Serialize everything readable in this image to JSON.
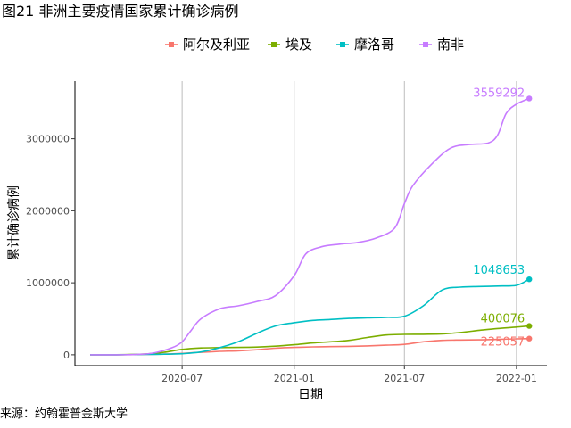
{
  "header": {
    "title": "图21 非洲主要疫情国家累计确诊病例",
    "source": "来源：约翰霍普金斯大学"
  },
  "chart_data": {
    "type": "line",
    "title": "图21 非洲主要疫情国家累计确诊病例",
    "xlabel": "日期",
    "ylabel": "累计确诊病例",
    "x_ticks": [
      "2020-07",
      "2021-01",
      "2021-07",
      "2022-01"
    ],
    "y_ticks": [
      "0",
      "1000000",
      "2000000",
      "3000000"
    ],
    "ylim": [
      -150000,
      3800000
    ],
    "xlim": [
      "2020-01-07",
      "2022-02-20"
    ],
    "grid": "vertical",
    "legend_position": "top",
    "series": [
      {
        "name": "阿尔及利亚",
        "color": "#F8766D",
        "end_label": "225057",
        "points": [
          [
            "2020-02-01",
            0
          ],
          [
            "2020-03-15",
            0
          ],
          [
            "2020-05-01",
            5000
          ],
          [
            "2020-06-01",
            10000
          ],
          [
            "2020-07-01",
            20000
          ],
          [
            "2020-08-01",
            35000
          ],
          [
            "2020-09-01",
            48000
          ],
          [
            "2020-10-01",
            55000
          ],
          [
            "2020-11-01",
            70000
          ],
          [
            "2020-12-01",
            92000
          ],
          [
            "2021-01-01",
            102000
          ],
          [
            "2021-02-01",
            110000
          ],
          [
            "2021-03-01",
            114000
          ],
          [
            "2021-04-01",
            118000
          ],
          [
            "2021-05-01",
            124000
          ],
          [
            "2021-06-01",
            133000
          ],
          [
            "2021-07-01",
            145000
          ],
          [
            "2021-08-01",
            180000
          ],
          [
            "2021-09-01",
            200000
          ],
          [
            "2021-10-01",
            205000
          ],
          [
            "2021-11-01",
            208000
          ],
          [
            "2021-12-01",
            214000
          ],
          [
            "2022-01-01",
            222000
          ],
          [
            "2022-01-22",
            225057
          ]
        ]
      },
      {
        "name": "埃及",
        "color": "#7CAE00",
        "end_label": "400076",
        "points": [
          [
            "2020-02-01",
            0
          ],
          [
            "2020-03-15",
            1000
          ],
          [
            "2020-05-01",
            10000
          ],
          [
            "2020-06-01",
            35000
          ],
          [
            "2020-07-01",
            75000
          ],
          [
            "2020-08-01",
            95000
          ],
          [
            "2020-09-01",
            100000
          ],
          [
            "2020-10-01",
            103000
          ],
          [
            "2020-11-01",
            108000
          ],
          [
            "2020-12-01",
            120000
          ],
          [
            "2021-01-01",
            140000
          ],
          [
            "2021-02-01",
            165000
          ],
          [
            "2021-03-01",
            180000
          ],
          [
            "2021-04-01",
            200000
          ],
          [
            "2021-05-01",
            240000
          ],
          [
            "2021-06-01",
            275000
          ],
          [
            "2021-07-01",
            283000
          ],
          [
            "2021-08-01",
            285000
          ],
          [
            "2021-09-01",
            290000
          ],
          [
            "2021-10-01",
            310000
          ],
          [
            "2021-11-01",
            340000
          ],
          [
            "2021-12-01",
            365000
          ],
          [
            "2022-01-01",
            385000
          ],
          [
            "2022-01-22",
            400076
          ]
        ]
      },
      {
        "name": "摩洛哥",
        "color": "#00BFC4",
        "end_label": "1048653",
        "points": [
          [
            "2020-02-01",
            0
          ],
          [
            "2020-03-15",
            0
          ],
          [
            "2020-05-01",
            5000
          ],
          [
            "2020-06-01",
            8000
          ],
          [
            "2020-07-01",
            15000
          ],
          [
            "2020-08-01",
            40000
          ],
          [
            "2020-09-01",
            100000
          ],
          [
            "2020-10-01",
            180000
          ],
          [
            "2020-11-01",
            300000
          ],
          [
            "2020-12-01",
            400000
          ],
          [
            "2021-01-01",
            445000
          ],
          [
            "2021-02-01",
            478000
          ],
          [
            "2021-03-01",
            490000
          ],
          [
            "2021-04-01",
            505000
          ],
          [
            "2021-05-01",
            513000
          ],
          [
            "2021-06-01",
            520000
          ],
          [
            "2021-07-01",
            535000
          ],
          [
            "2021-08-01",
            680000
          ],
          [
            "2021-09-01",
            900000
          ],
          [
            "2021-10-01",
            940000
          ],
          [
            "2021-11-01",
            948000
          ],
          [
            "2021-12-01",
            955000
          ],
          [
            "2022-01-01",
            965000
          ],
          [
            "2022-01-22",
            1048653
          ]
        ]
      },
      {
        "name": "南非",
        "color": "#C77CFF",
        "end_label": "3559292",
        "points": [
          [
            "2020-02-01",
            0
          ],
          [
            "2020-03-15",
            0
          ],
          [
            "2020-04-15",
            3000
          ],
          [
            "2020-05-15",
            25000
          ],
          [
            "2020-06-15",
            100000
          ],
          [
            "2020-07-01",
            180000
          ],
          [
            "2020-07-15",
            330000
          ],
          [
            "2020-08-01",
            500000
          ],
          [
            "2020-09-01",
            640000
          ],
          [
            "2020-10-01",
            680000
          ],
          [
            "2020-11-01",
            740000
          ],
          [
            "2020-12-01",
            820000
          ],
          [
            "2021-01-01",
            1100000
          ],
          [
            "2021-01-20",
            1400000
          ],
          [
            "2021-02-15",
            1500000
          ],
          [
            "2021-03-15",
            1535000
          ],
          [
            "2021-04-15",
            1560000
          ],
          [
            "2021-05-15",
            1620000
          ],
          [
            "2021-06-15",
            1760000
          ],
          [
            "2021-07-01",
            2100000
          ],
          [
            "2021-07-15",
            2350000
          ],
          [
            "2021-08-15",
            2650000
          ],
          [
            "2021-09-15",
            2870000
          ],
          [
            "2021-10-15",
            2920000
          ],
          [
            "2021-11-15",
            2940000
          ],
          [
            "2021-12-01",
            3050000
          ],
          [
            "2021-12-15",
            3350000
          ],
          [
            "2022-01-01",
            3480000
          ],
          [
            "2022-01-22",
            3559292
          ]
        ]
      }
    ]
  }
}
